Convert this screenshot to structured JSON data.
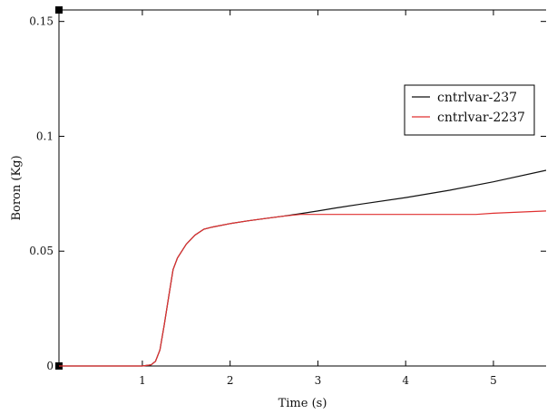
{
  "chart_data": {
    "type": "line",
    "title": "",
    "xlabel": "Time (s)",
    "ylabel": "Boron (Kg)",
    "xlim": [
      0.05,
      5.6
    ],
    "ylim": [
      0,
      0.155
    ],
    "x_ticks": [
      1,
      2,
      3,
      4,
      5
    ],
    "x_tick_labels": [
      "1",
      "2",
      "3",
      "4",
      "5"
    ],
    "y_ticks": [
      0,
      0.05,
      0.1,
      0.15
    ],
    "y_tick_labels": [
      "0",
      "0.05",
      "0.1",
      "0.15"
    ],
    "grid": false,
    "legend_position": "right",
    "series": [
      {
        "name": "cntrlvar-237",
        "color": "#111111",
        "x": [
          0.05,
          1.0,
          1.1,
          1.15,
          1.2,
          1.25,
          1.3,
          1.35,
          1.4,
          1.5,
          1.6,
          1.7,
          1.8,
          2.0,
          2.2,
          2.4,
          2.6,
          2.8,
          3.0,
          3.2,
          3.5,
          4.0,
          4.5,
          5.0,
          5.6
        ],
        "y": [
          0,
          0,
          0.0005,
          0.002,
          0.007,
          0.018,
          0.03,
          0.042,
          0.047,
          0.053,
          0.057,
          0.0595,
          0.0605,
          0.062,
          0.0632,
          0.0642,
          0.0652,
          0.0663,
          0.0675,
          0.0688,
          0.0705,
          0.0733,
          0.0765,
          0.0802,
          0.0852
        ]
      },
      {
        "name": "cntrlvar-2237",
        "color": "#e03030",
        "x": [
          0.05,
          1.0,
          1.1,
          1.15,
          1.2,
          1.25,
          1.3,
          1.35,
          1.4,
          1.5,
          1.6,
          1.7,
          1.8,
          2.0,
          2.2,
          2.4,
          2.6,
          2.8,
          3.0,
          3.5,
          4.0,
          4.5,
          4.8,
          5.0,
          5.6
        ],
        "y": [
          0,
          0,
          0.0005,
          0.002,
          0.007,
          0.018,
          0.03,
          0.042,
          0.047,
          0.053,
          0.057,
          0.0595,
          0.0605,
          0.062,
          0.0632,
          0.0642,
          0.0652,
          0.066,
          0.066,
          0.066,
          0.066,
          0.066,
          0.066,
          0.0665,
          0.0675
        ]
      }
    ]
  }
}
